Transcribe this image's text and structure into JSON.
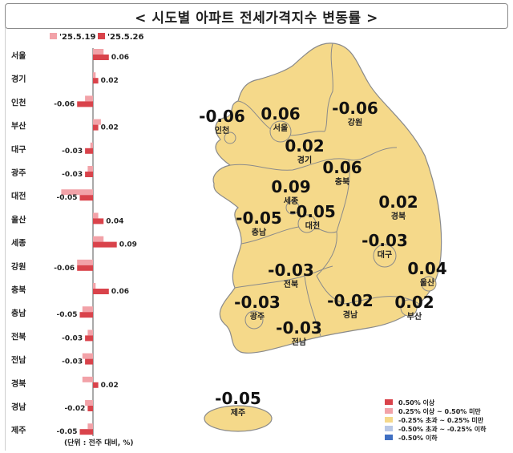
{
  "title": "< 시도별 아파트 전세가격지수 변동률 >",
  "chart_data": [
    {
      "type": "bar",
      "orientation": "horizontal",
      "legend_position": "top",
      "categories": [
        "서울",
        "경기",
        "인천",
        "부산",
        "대구",
        "광주",
        "대전",
        "울산",
        "세종",
        "강원",
        "충북",
        "충남",
        "전북",
        "전남",
        "경북",
        "경남",
        "제주"
      ],
      "series": [
        {
          "name": "'25.5.19",
          "color": "#f2a2a8",
          "values": [
            0.04,
            0.01,
            -0.03,
            0.03,
            -0.01,
            -0.02,
            -0.12,
            0.02,
            0.04,
            -0.06,
            0.01,
            -0.04,
            -0.02,
            -0.04,
            -0.04,
            -0.03,
            -0.02
          ]
        },
        {
          "name": "'25.5.26",
          "color": "#d9434b",
          "values": [
            0.06,
            0.02,
            -0.06,
            0.02,
            -0.03,
            -0.03,
            -0.05,
            0.04,
            0.09,
            -0.06,
            0.06,
            -0.05,
            -0.03,
            -0.03,
            0.02,
            -0.02,
            -0.05
          ]
        }
      ],
      "data_labels": [
        "0.06",
        "0.02",
        "-0.06",
        "0.02",
        "-0.03",
        "-0.03",
        "-0.05",
        "0.04",
        "0.09",
        "-0.06",
        "0.06",
        "-0.05",
        "-0.03",
        "-0.03",
        "0.02",
        "-0.02",
        "-0.05"
      ],
      "unit_note": "(단위 : 전주 대비, %)"
    },
    {
      "type": "choropleth",
      "regions": [
        {
          "name": "인천",
          "value": "-0.06"
        },
        {
          "name": "서울",
          "value": "0.06"
        },
        {
          "name": "강원",
          "value": "-0.06"
        },
        {
          "name": "경기",
          "value": "0.02"
        },
        {
          "name": "충북",
          "value": "0.06"
        },
        {
          "name": "세종",
          "value": "0.09"
        },
        {
          "name": "대전",
          "value": "-0.05"
        },
        {
          "name": "충남",
          "value": "-0.05"
        },
        {
          "name": "경북",
          "value": "0.02"
        },
        {
          "name": "대구",
          "value": "-0.03"
        },
        {
          "name": "전북",
          "value": "-0.03"
        },
        {
          "name": "울산",
          "value": "0.04"
        },
        {
          "name": "광주",
          "value": "-0.03"
        },
        {
          "name": "경남",
          "value": "-0.02"
        },
        {
          "name": "부산",
          "value": "0.02"
        },
        {
          "name": "전남",
          "value": "-0.03"
        },
        {
          "name": "제주",
          "value": "-0.05"
        }
      ],
      "legend": [
        {
          "label": "0.50% 이상",
          "color": "#d9434b"
        },
        {
          "label": "0.25% 이상 ~ 0.50% 미만",
          "color": "#f2a2a8"
        },
        {
          "label": "-0.25% 초과 ~ 0.25% 미만",
          "color": "#f5d98a"
        },
        {
          "label": "-0.50% 초과 ~ -0.25% 이하",
          "color": "#b9c8e6"
        },
        {
          "label": "-0.50% 이하",
          "color": "#3f6fc2"
        }
      ],
      "fill_color": "#f5d98a",
      "border_color": "#8a8a8a"
    }
  ]
}
